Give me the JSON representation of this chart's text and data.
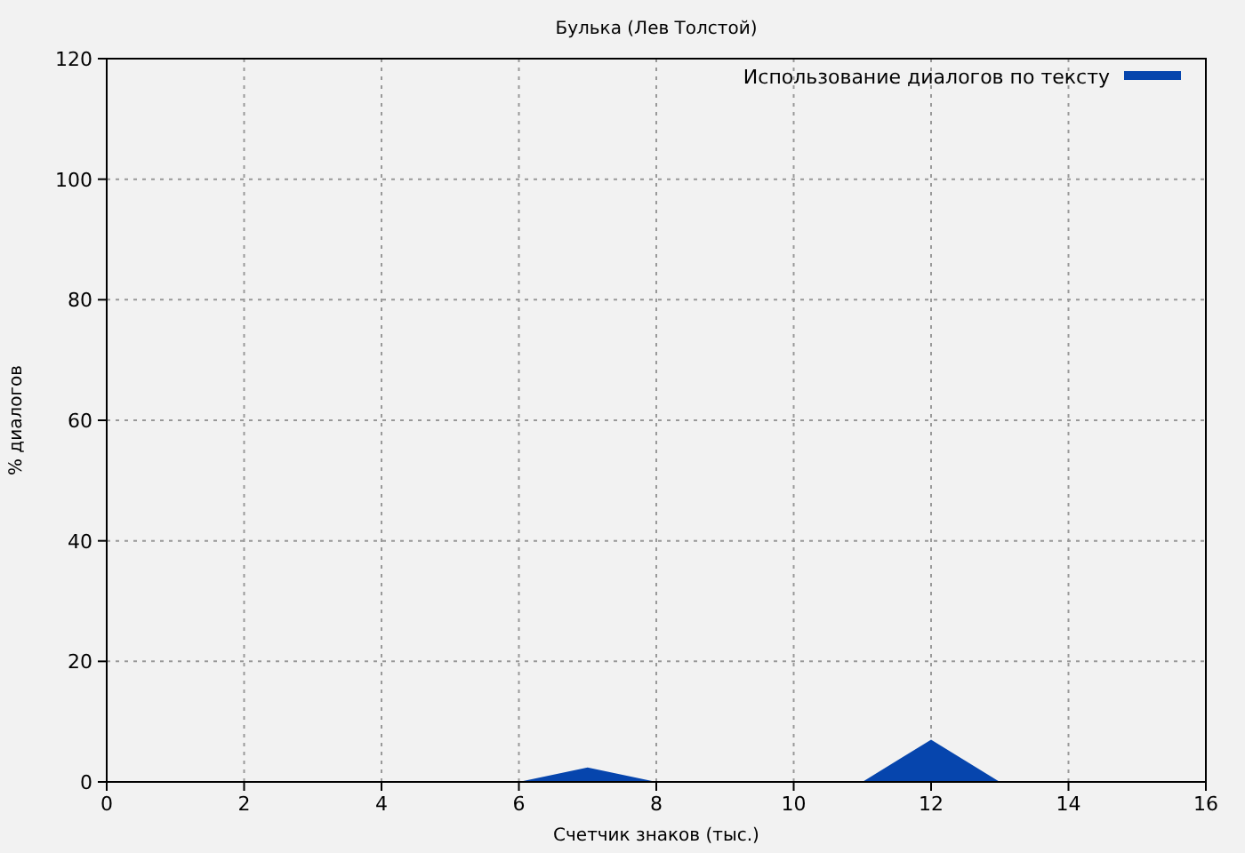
{
  "chart_data": {
    "type": "area",
    "title": "Булька (Лев Толстой)",
    "xlabel": "Счетчик знаков (тыс.)",
    "ylabel": "% диалогов",
    "x": [
      0,
      1,
      2,
      3,
      4,
      5,
      6,
      7,
      8,
      9,
      10,
      11,
      12,
      13,
      14,
      15,
      16
    ],
    "series": [
      {
        "name": "Использование диалогов по тексту",
        "color": "#0645ad",
        "values": [
          0,
          0,
          0,
          0,
          0,
          0,
          0,
          2.4,
          0,
          0,
          0,
          0,
          7,
          0,
          0,
          0,
          0
        ]
      }
    ],
    "xlim": [
      0,
      16
    ],
    "xticks": [
      0,
      2,
      4,
      6,
      8,
      10,
      12,
      14,
      16
    ],
    "ylim": [
      0,
      120
    ],
    "yticks": [
      0,
      20,
      40,
      60,
      80,
      100,
      120
    ],
    "grid": true,
    "legend": "top right"
  }
}
